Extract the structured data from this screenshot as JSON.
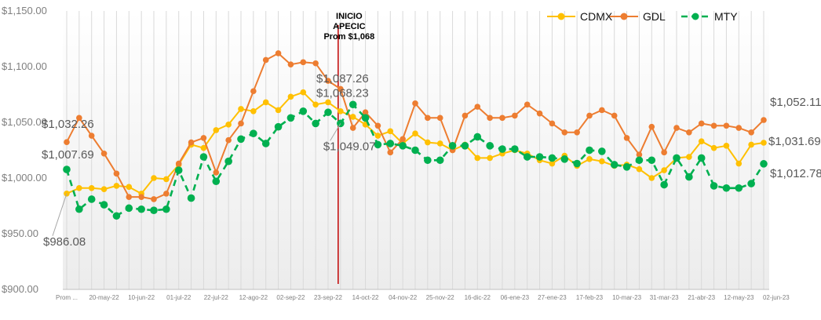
{
  "chart_data": {
    "type": "line",
    "ylim": [
      900,
      1150
    ],
    "y_ticks": [
      {
        "value": 900,
        "label": "$900.00"
      },
      {
        "value": 950,
        "label": "$950.00"
      },
      {
        "value": 1000,
        "label": "$1,000.00"
      },
      {
        "value": 1050,
        "label": "$1,050.00"
      },
      {
        "value": 1100,
        "label": "$1,100.00"
      },
      {
        "value": 1150,
        "label": "$1,150.00"
      }
    ],
    "x_tick_labels": [
      {
        "index": 0,
        "label": "Prom ..."
      },
      {
        "index": 3,
        "label": "20-may-22"
      },
      {
        "index": 6,
        "label": "10-jun-22"
      },
      {
        "index": 9,
        "label": "01-jul-22"
      },
      {
        "index": 12,
        "label": "22-jul-22"
      },
      {
        "index": 15,
        "label": "12-ago-22"
      },
      {
        "index": 18,
        "label": "02-sep-22"
      },
      {
        "index": 21,
        "label": "23-sep-22"
      },
      {
        "index": 24,
        "label": "14-oct-22"
      },
      {
        "index": 27,
        "label": "04-nov-22"
      },
      {
        "index": 30,
        "label": "25-nov-22"
      },
      {
        "index": 33,
        "label": "16-dic-22"
      },
      {
        "index": 36,
        "label": "06-ene-23"
      },
      {
        "index": 39,
        "label": "27-ene-23"
      },
      {
        "index": 42,
        "label": "17-feb-23"
      },
      {
        "index": 45,
        "label": "10-mar-23"
      },
      {
        "index": 48,
        "label": "31-mar-23"
      },
      {
        "index": 51,
        "label": "21-abr-23"
      },
      {
        "index": 54,
        "label": "12-may-23"
      },
      {
        "index": 57,
        "label": "02-jun-23"
      }
    ],
    "legend_position": "top-right",
    "series": [
      {
        "name": "CDMX",
        "color": "#ffc000",
        "style": "solid",
        "values": [
          986.08,
          991,
          991,
          990,
          993,
          992,
          986,
          1000,
          999,
          1012,
          1030,
          1027,
          1043,
          1048,
          1062,
          1060,
          1068,
          1061,
          1073,
          1077,
          1066,
          1068,
          1060,
          1055,
          1048,
          1038,
          1042,
          1031,
          1040,
          1032,
          1031,
          1025,
          1030,
          1018,
          1018,
          1022,
          1025,
          1022,
          1016,
          1013,
          1020,
          1011,
          1017,
          1015,
          1011,
          1012,
          1008,
          1000,
          1007,
          1018,
          1019,
          1033,
          1027,
          1029,
          1013,
          1030,
          1031.69
        ]
      },
      {
        "name": "GDL",
        "color": "#ed7d31",
        "style": "solid",
        "values": [
          1032.26,
          1054,
          1038,
          1022,
          1004,
          983,
          983,
          981,
          986,
          1013,
          1032,
          1036,
          1005,
          1034,
          1049,
          1078,
          1106,
          1112,
          1102,
          1104,
          1103,
          1087.26,
          1080,
          1045,
          1059,
          1047,
          1023,
          1035,
          1067,
          1054,
          1054,
          1025,
          1056,
          1064,
          1054,
          1054,
          1056,
          1066,
          1058,
          1049,
          1041,
          1041,
          1056,
          1061,
          1056,
          1036,
          1021,
          1046,
          1023,
          1045,
          1041,
          1049,
          1047,
          1047,
          1045,
          1041,
          1052.11
        ]
      },
      {
        "name": "MTY",
        "color": "#00b050",
        "style": "dashed",
        "values": [
          1007.69,
          972,
          981,
          976,
          966,
          973,
          972,
          971,
          972,
          1007,
          982,
          1019,
          997,
          1015,
          1035,
          1040,
          1031,
          1046,
          1054,
          1060,
          1049,
          1059,
          1049.07,
          1066,
          1054,
          1030,
          1031,
          1029,
          1025,
          1016,
          1016,
          1029,
          1029,
          1037,
          1029,
          1026,
          1026,
          1019,
          1019,
          1018,
          1017,
          1013,
          1025,
          1024,
          1012,
          1010,
          1016,
          1016,
          994,
          1018,
          1001,
          1018,
          993,
          991,
          991,
          995,
          1012.78
        ]
      }
    ],
    "data_labels": [
      {
        "series": "CDMX",
        "index": 0,
        "text": "$986.08"
      },
      {
        "series": "GDL",
        "index": 0,
        "text": "$1,032.26"
      },
      {
        "series": "MTY",
        "index": 0,
        "text": "$1,007.69"
      },
      {
        "series": "GDL",
        "index": 21,
        "text": "$1,087.26"
      },
      {
        "series": "CDMX",
        "index": 21,
        "text": "$1,068.23"
      },
      {
        "series": "MTY",
        "index": 22,
        "text": "$1,049.07"
      },
      {
        "series": "GDL",
        "index": 56,
        "text": "$1,052.11"
      },
      {
        "series": "CDMX",
        "index": 56,
        "text": "$1,031.69"
      },
      {
        "series": "MTY",
        "index": 56,
        "text": "$1,012.78"
      }
    ],
    "annotation": {
      "index": 22,
      "color": "#c00000",
      "lines": [
        "INICIO",
        "APECIC",
        "Prom $1,068"
      ]
    }
  }
}
